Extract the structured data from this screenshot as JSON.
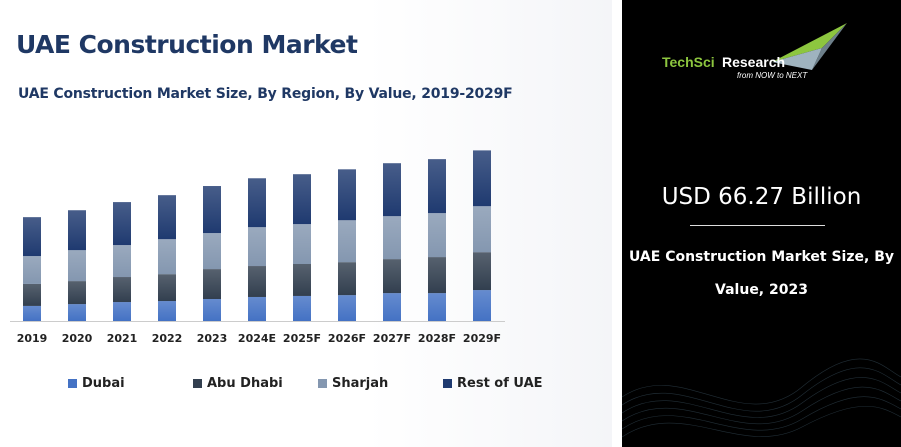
{
  "title": "UAE Construction Market",
  "subtitle": "UAE Construction Market Size, By Region, By Value, 2019-2029F",
  "colors": {
    "Dubai": "#4472c4",
    "Abu Dhabi": "#323f4f",
    "Sharjah": "#8497b0",
    "Rest of UAE": "#1f3a70"
  },
  "chart_data": {
    "type": "bar",
    "stacked": true,
    "title": "UAE Construction Market Size, By Region, By Value, 2019-2029F",
    "categories": [
      "2019",
      "2020",
      "2021",
      "2022",
      "2023",
      "2024E",
      "2025F",
      "2026F",
      "2027F",
      "2028F",
      "2029F"
    ],
    "series": [
      {
        "name": "Dubai",
        "values": [
          7.4,
          8.3,
          9.3,
          9.8,
          10.8,
          11.8,
          12.3,
          12.7,
          13.7,
          13.7,
          15.2
        ]
      },
      {
        "name": "Abu Dhabi",
        "values": [
          10.8,
          11.3,
          12.3,
          13.2,
          14.7,
          15.2,
          15.7,
          16.2,
          16.7,
          17.7,
          18.6
        ]
      },
      {
        "name": "Sharjah",
        "values": [
          13.7,
          15.2,
          15.7,
          17.2,
          17.7,
          19.1,
          19.6,
          20.6,
          21.1,
          21.6,
          22.6
        ]
      },
      {
        "name": "Rest of UAE",
        "values": [
          19.1,
          19.6,
          21.1,
          21.6,
          23.1,
          24.0,
          24.5,
          25.0,
          26.0,
          26.5,
          27.4
        ]
      }
    ],
    "ylim": [
      0,
      90
    ],
    "grid": false,
    "legend": "bottom",
    "xlabel": "",
    "ylabel": ""
  },
  "panel": {
    "logo": {
      "brand_left": "TechSci",
      "brand_right": "Research",
      "tagline": "from NOW to NEXT"
    },
    "value": "USD 66.27 Billion",
    "desc_line1": "UAE Construction Market Size, By",
    "desc_line2": "Value, 2023"
  }
}
